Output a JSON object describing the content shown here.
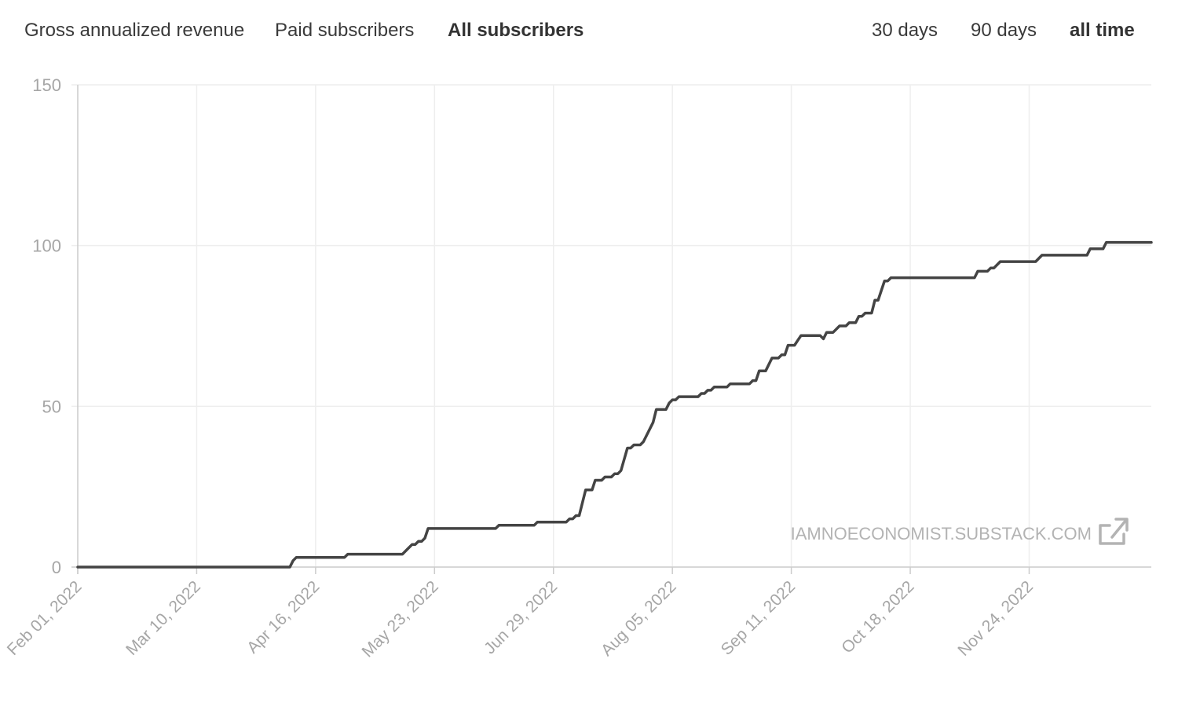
{
  "metric_tabs": [
    {
      "label": "Gross annualized revenue",
      "active": false
    },
    {
      "label": "Paid subscribers",
      "active": false
    },
    {
      "label": "All subscribers",
      "active": true
    }
  ],
  "range_tabs": [
    {
      "label": "30 days",
      "active": false
    },
    {
      "label": "90 days",
      "active": false
    },
    {
      "label": "all time",
      "active": true
    }
  ],
  "watermark": {
    "text": "IAMNOECONOMIST.SUBSTACK.COM",
    "icon": "external-link-icon"
  },
  "colors": {
    "line": "#444444",
    "grid": "#eeeeee",
    "axis": "#cccccc",
    "tick_text": "#a6a6a6",
    "watermark": "#b3b3b3"
  },
  "chart_data": {
    "type": "line",
    "title": "",
    "xlabel": "",
    "ylabel": "",
    "x_ticks": [
      "Feb 01, 2022",
      "Mar 10, 2022",
      "Apr 16, 2022",
      "May 23, 2022",
      "Jun 29, 2022",
      "Aug 05, 2022",
      "Sep 11, 2022",
      "Oct 18, 2022",
      "Nov 24, 2022"
    ],
    "y_ticks": [
      0,
      50,
      100,
      150
    ],
    "ylim": [
      0,
      150
    ],
    "xlim": [
      "2022-02-01",
      "2022-12-31"
    ],
    "grid": true,
    "series": [
      {
        "points": [
          [
            "2022-02-01",
            0
          ],
          [
            "2022-04-08",
            0
          ],
          [
            "2022-04-09",
            2
          ],
          [
            "2022-04-10",
            3
          ],
          [
            "2022-04-25",
            3
          ],
          [
            "2022-04-26",
            4
          ],
          [
            "2022-05-13",
            4
          ],
          [
            "2022-05-15",
            6
          ],
          [
            "2022-05-16",
            7
          ],
          [
            "2022-05-17",
            7
          ],
          [
            "2022-05-18",
            8
          ],
          [
            "2022-05-19",
            8
          ],
          [
            "2022-05-20",
            9
          ],
          [
            "2022-05-21",
            12
          ],
          [
            "2022-06-11",
            12
          ],
          [
            "2022-06-12",
            13
          ],
          [
            "2022-06-23",
            13
          ],
          [
            "2022-06-24",
            14
          ],
          [
            "2022-07-03",
            14
          ],
          [
            "2022-07-04",
            15
          ],
          [
            "2022-07-05",
            15
          ],
          [
            "2022-07-06",
            16
          ],
          [
            "2022-07-07",
            16
          ],
          [
            "2022-07-09",
            24
          ],
          [
            "2022-07-11",
            24
          ],
          [
            "2022-07-12",
            27
          ],
          [
            "2022-07-14",
            27
          ],
          [
            "2022-07-15",
            28
          ],
          [
            "2022-07-17",
            28
          ],
          [
            "2022-07-18",
            29
          ],
          [
            "2022-07-19",
            29
          ],
          [
            "2022-07-20",
            30
          ],
          [
            "2022-07-22",
            37
          ],
          [
            "2022-07-23",
            37
          ],
          [
            "2022-07-24",
            38
          ],
          [
            "2022-07-26",
            38
          ],
          [
            "2022-07-27",
            39
          ],
          [
            "2022-07-30",
            45
          ],
          [
            "2022-07-31",
            49
          ],
          [
            "2022-08-03",
            49
          ],
          [
            "2022-08-04",
            51
          ],
          [
            "2022-08-05",
            52
          ],
          [
            "2022-08-06",
            52
          ],
          [
            "2022-08-07",
            53
          ],
          [
            "2022-08-13",
            53
          ],
          [
            "2022-08-14",
            54
          ],
          [
            "2022-08-15",
            54
          ],
          [
            "2022-08-16",
            55
          ],
          [
            "2022-08-17",
            55
          ],
          [
            "2022-08-18",
            56
          ],
          [
            "2022-08-22",
            56
          ],
          [
            "2022-08-23",
            57
          ],
          [
            "2022-08-29",
            57
          ],
          [
            "2022-08-30",
            58
          ],
          [
            "2022-08-31",
            58
          ],
          [
            "2022-09-01",
            61
          ],
          [
            "2022-09-03",
            61
          ],
          [
            "2022-09-05",
            65
          ],
          [
            "2022-09-07",
            65
          ],
          [
            "2022-09-08",
            66
          ],
          [
            "2022-09-09",
            66
          ],
          [
            "2022-09-10",
            69
          ],
          [
            "2022-09-12",
            69
          ],
          [
            "2022-09-14",
            72
          ],
          [
            "2022-09-20",
            72
          ],
          [
            "2022-09-21",
            71
          ],
          [
            "2022-09-22",
            73
          ],
          [
            "2022-09-24",
            73
          ],
          [
            "2022-09-26",
            75
          ],
          [
            "2022-09-28",
            75
          ],
          [
            "2022-09-29",
            76
          ],
          [
            "2022-10-01",
            76
          ],
          [
            "2022-10-02",
            78
          ],
          [
            "2022-10-03",
            78
          ],
          [
            "2022-10-04",
            79
          ],
          [
            "2022-10-06",
            79
          ],
          [
            "2022-10-07",
            83
          ],
          [
            "2022-10-08",
            83
          ],
          [
            "2022-10-10",
            89
          ],
          [
            "2022-10-11",
            89
          ],
          [
            "2022-10-12",
            90
          ],
          [
            "2022-11-07",
            90
          ],
          [
            "2022-11-08",
            92
          ],
          [
            "2022-11-11",
            92
          ],
          [
            "2022-11-12",
            93
          ],
          [
            "2022-11-13",
            93
          ],
          [
            "2022-11-15",
            95
          ],
          [
            "2022-11-26",
            95
          ],
          [
            "2022-11-28",
            97
          ],
          [
            "2022-12-12",
            97
          ],
          [
            "2022-12-13",
            99
          ],
          [
            "2022-12-15",
            99
          ],
          [
            "2022-12-17",
            99
          ],
          [
            "2022-12-18",
            101
          ],
          [
            "2022-12-31",
            101
          ]
        ]
      }
    ]
  }
}
